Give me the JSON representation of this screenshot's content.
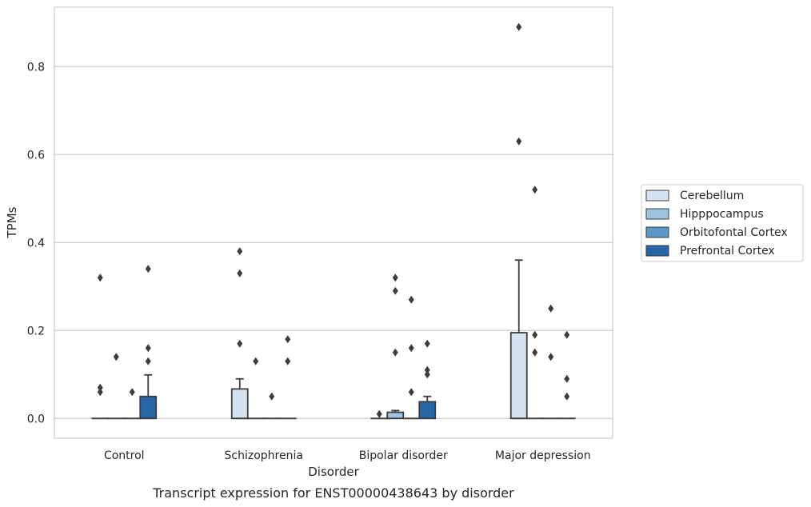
{
  "chart_data": {
    "type": "box",
    "title": "",
    "caption": "Transcript expression for ENST00000438643 by disorder",
    "xlabel": "Disorder",
    "ylabel": "TPMs",
    "ylim": [
      -0.045,
      0.935
    ],
    "yticks": [
      0.0,
      0.2,
      0.4,
      0.6,
      0.8
    ],
    "ytick_labels": [
      "0.0",
      "0.2",
      "0.4",
      "0.6",
      "0.8"
    ],
    "grid": "horizontal",
    "legend_position": "right",
    "categories": [
      "Control",
      "Schizophrenia",
      "Bipolar disorder",
      "Major depression"
    ],
    "series": [
      {
        "name": "Cerebellum",
        "color": "#d3e3f2",
        "boxes": [
          {
            "q1": 0,
            "median": 0,
            "q3": 0,
            "whisker_low": 0,
            "whisker_high": 0,
            "outliers": [
              0.32,
              0.07,
              0.06
            ]
          },
          {
            "q1": 0,
            "median": 0,
            "q3": 0.067,
            "whisker_low": 0,
            "whisker_high": 0.09,
            "outliers": [
              0.38,
              0.33,
              0.17
            ]
          },
          {
            "q1": 0,
            "median": 0,
            "q3": 0,
            "whisker_low": 0,
            "whisker_high": 0,
            "outliers": [
              0.01
            ]
          },
          {
            "q1": 0,
            "median": 0,
            "q3": 0.195,
            "whisker_low": 0,
            "whisker_high": 0.36,
            "outliers": [
              0.89,
              0.63
            ]
          }
        ]
      },
      {
        "name": "Hipppocampus",
        "color": "#9dc3de",
        "boxes": [
          {
            "q1": 0,
            "median": 0,
            "q3": 0,
            "whisker_low": 0,
            "whisker_high": 0,
            "outliers": [
              0.14
            ]
          },
          {
            "q1": 0,
            "median": 0,
            "q3": 0,
            "whisker_low": 0,
            "whisker_high": 0,
            "outliers": [
              0.13
            ]
          },
          {
            "q1": 0,
            "median": 0,
            "q3": 0.014,
            "whisker_low": 0,
            "whisker_high": 0.018,
            "outliers": [
              0.32,
              0.29,
              0.15
            ]
          },
          {
            "q1": 0,
            "median": 0,
            "q3": 0,
            "whisker_low": 0,
            "whisker_high": 0,
            "outliers": [
              0.52,
              0.19,
              0.15
            ]
          }
        ]
      },
      {
        "name": "Orbitofontal Cortex",
        "color": "#5a99c7",
        "boxes": [
          {
            "q1": 0,
            "median": 0,
            "q3": 0,
            "whisker_low": 0,
            "whisker_high": 0,
            "outliers": [
              0.06
            ]
          },
          {
            "q1": 0,
            "median": 0,
            "q3": 0,
            "whisker_low": 0,
            "whisker_high": 0,
            "outliers": [
              0.05
            ]
          },
          {
            "q1": 0,
            "median": 0,
            "q3": 0,
            "whisker_low": 0,
            "whisker_high": 0,
            "outliers": [
              0.27,
              0.16,
              0.06
            ]
          },
          {
            "q1": 0,
            "median": 0,
            "q3": 0,
            "whisker_low": 0,
            "whisker_high": 0,
            "outliers": [
              0.25,
              0.14
            ]
          }
        ]
      },
      {
        "name": "Prefrontal Cortex",
        "color": "#2665a6",
        "boxes": [
          {
            "q1": 0,
            "median": 0,
            "q3": 0.05,
            "whisker_low": 0,
            "whisker_high": 0.099,
            "outliers": [
              0.34,
              0.16,
              0.13
            ]
          },
          {
            "q1": 0,
            "median": 0,
            "q3": 0,
            "whisker_low": 0,
            "whisker_high": 0,
            "outliers": [
              0.18,
              0.13
            ]
          },
          {
            "q1": 0,
            "median": 0,
            "q3": 0.038,
            "whisker_low": 0,
            "whisker_high": 0.05,
            "outliers": [
              0.17,
              0.11,
              0.1
            ]
          },
          {
            "q1": 0,
            "median": 0,
            "q3": 0,
            "whisker_low": 0,
            "whisker_high": 0,
            "outliers": [
              0.19,
              0.09,
              0.05
            ]
          }
        ]
      }
    ]
  }
}
